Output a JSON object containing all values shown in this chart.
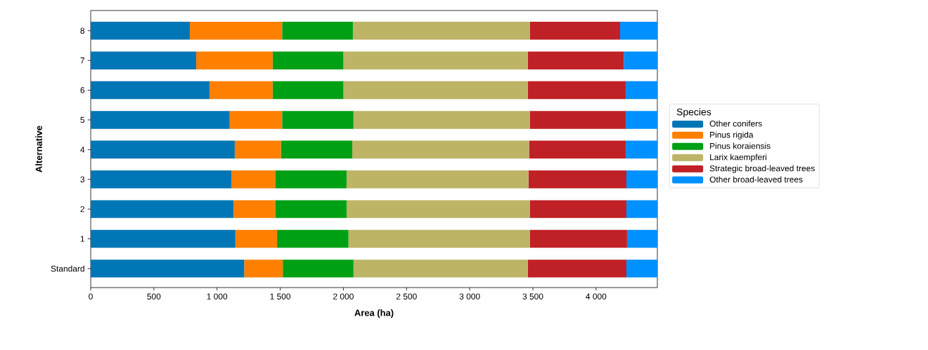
{
  "chart_data": {
    "type": "bar",
    "orientation": "horizontal",
    "stacked": true,
    "xlabel": "Area (ha)",
    "ylabel": "Alternative",
    "legend_title": "Species",
    "legend": "right",
    "categories": [
      "8",
      "7",
      "6",
      "5",
      "4",
      "3",
      "2",
      "1",
      "Standard"
    ],
    "xlim": [
      0,
      4485
    ],
    "xticks": [
      0,
      500,
      {
        "value": 1000,
        "label": "1 000"
      },
      {
        "value": 1500,
        "label": "1 500"
      },
      {
        "value": 2000,
        "label": "2 000"
      },
      {
        "value": 2500,
        "label": "2 500"
      },
      {
        "value": 3000,
        "label": "3 000"
      },
      {
        "value": 3500,
        "label": "3 500"
      },
      {
        "value": 4000,
        "label": "4 000"
      }
    ],
    "series": [
      {
        "name": "Other conifers",
        "color": "#0076b6",
        "values": [
          785,
          835,
          940,
          1100,
          1140,
          1115,
          1130,
          1145,
          1215
        ]
      },
      {
        "name": "Pinus rigida",
        "color": "#ff8000",
        "values": [
          730,
          605,
          500,
          415,
          365,
          345,
          330,
          330,
          305
        ]
      },
      {
        "name": "Pinus koraiensis",
        "color": "#00a014",
        "values": [
          560,
          560,
          560,
          565,
          565,
          565,
          565,
          565,
          560
        ]
      },
      {
        "name": "Larix kaempferi",
        "color": "#bdb466",
        "values": [
          1400,
          1460,
          1460,
          1395,
          1400,
          1440,
          1450,
          1435,
          1380
        ]
      },
      {
        "name": "Strategic broad-leaved trees",
        "color": "#c02126",
        "values": [
          715,
          760,
          775,
          760,
          765,
          775,
          765,
          770,
          780
        ]
      },
      {
        "name": "Other broad-leaved trees",
        "color": "#0090ff",
        "values": [
          295,
          265,
          250,
          250,
          250,
          245,
          245,
          240,
          245
        ]
      }
    ]
  }
}
